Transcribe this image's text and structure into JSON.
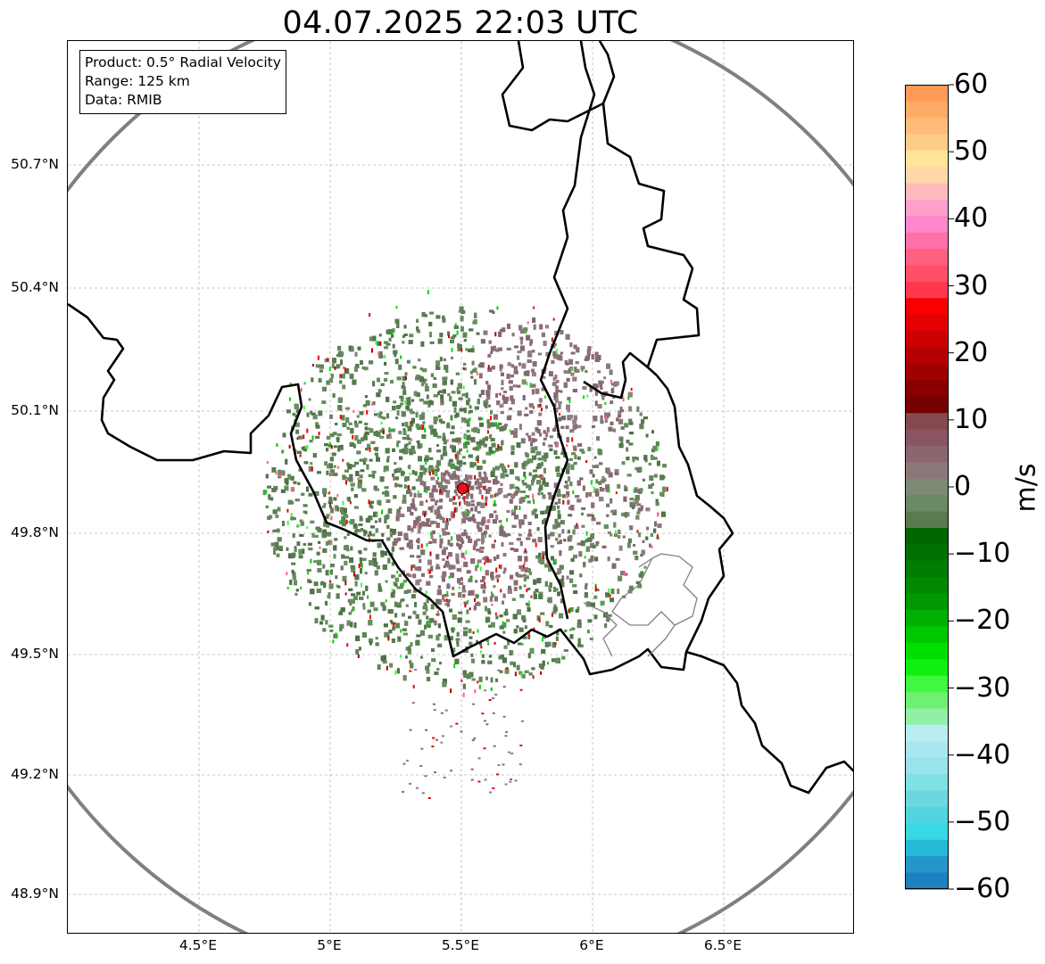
{
  "title": "04.07.2025 22:03 UTC",
  "info_box": {
    "product": "Product: 0.5° Radial Velocity",
    "range": "Range: 125 km",
    "data": "Data: RMIB"
  },
  "axes": {
    "lat_labels": [
      "50.7°N",
      "50.4°N",
      "50.1°N",
      "49.8°N",
      "49.5°N",
      "49.2°N",
      "48.9°N"
    ],
    "lon_labels": [
      "4.5°E",
      "5°E",
      "5.5°E",
      "6°E",
      "6.5°E"
    ]
  },
  "radar_site": {
    "lat": 49.91,
    "lon": 5.505,
    "marker_color": "#e8141a"
  },
  "range_ring": {
    "radius_km": 125,
    "color": "#808080"
  },
  "colorbar": {
    "label": "m/s",
    "min": -60,
    "max": 60,
    "tick_labels": [
      "60",
      "50",
      "40",
      "30",
      "20",
      "10",
      "0",
      "−10",
      "−20",
      "−30",
      "−40",
      "−50",
      "−60"
    ],
    "colors_top_to_bottom": [
      "#ff9955",
      "#ffaa66",
      "#ffbb77",
      "#ffcc88",
      "#ffe49a",
      "#ffd8a8",
      "#ffbbbb",
      "#ff9fcc",
      "#ff88cc",
      "#ff70a8",
      "#ff6080",
      "#ff5066",
      "#ff3850",
      "#f80000",
      "#e40000",
      "#cc0000",
      "#b40000",
      "#a00000",
      "#880000",
      "#740000",
      "#844850",
      "#8a5560",
      "#8b6570",
      "#8c7878",
      "#7c8a76",
      "#6a8a64",
      "#5a7a50",
      "#006400",
      "#007000",
      "#007c00",
      "#008a00",
      "#009a00",
      "#00b000",
      "#00c800",
      "#00e000",
      "#10f010",
      "#40f840",
      "#70f070",
      "#90f0a8",
      "#b8eef0",
      "#a8e8ee",
      "#98e4ea",
      "#80e0e4",
      "#6ad8de",
      "#50d4e0",
      "#38d8e4",
      "#28b8d8",
      "#2496cc",
      "#1e80c0"
    ]
  }
}
